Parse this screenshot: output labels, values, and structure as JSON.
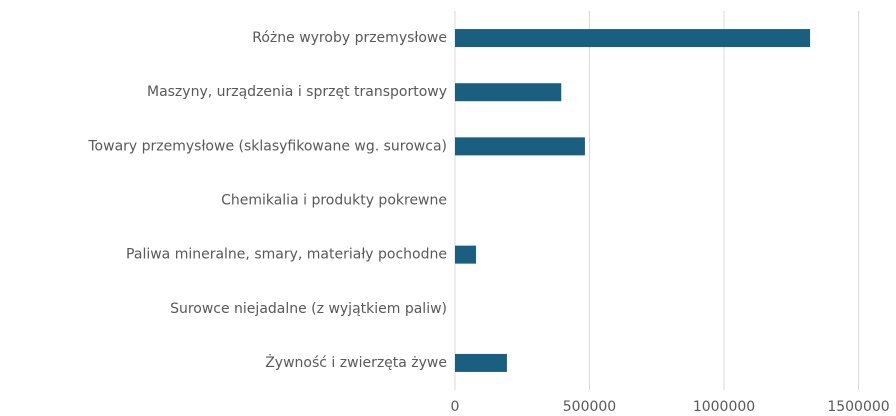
{
  "chart_data": {
    "type": "bar",
    "orientation": "horizontal",
    "categories": [
      "Różne wyroby przemysłowe",
      "Maszyny, urządzenia i sprzęt transportowy",
      "Towary przemysłowe (sklasyfikowane wg. surowca)",
      "Chemikalia i produkty pokrewne",
      "Paliwa mineralne, smary, materiały pochodne",
      "Surowce niejadalne (z wyjątkiem paliw)",
      "Żywność i zwierzęta żywe"
    ],
    "values": [
      1320000,
      395000,
      483000,
      0,
      78000,
      0,
      193000
    ],
    "color": "#1a5e80",
    "xlim": [
      0,
      1600000
    ],
    "xticks": [
      0,
      500000,
      1000000,
      1500000
    ],
    "grid": true
  }
}
